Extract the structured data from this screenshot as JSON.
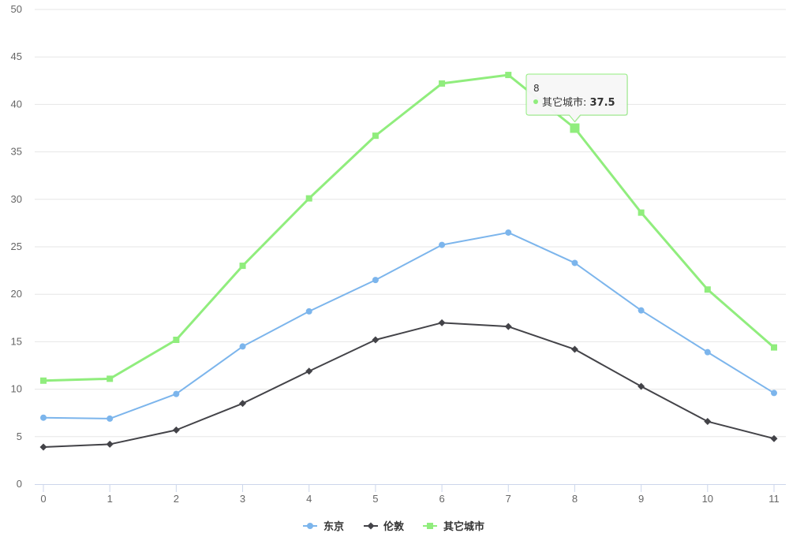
{
  "chart_data": {
    "type": "line",
    "x": [
      0,
      1,
      2,
      3,
      4,
      5,
      6,
      7,
      8,
      9,
      10,
      11
    ],
    "xlim": [
      0,
      11
    ],
    "ylim": [
      0,
      50
    ],
    "yticks": [
      0,
      5,
      10,
      15,
      20,
      25,
      30,
      35,
      40,
      45,
      50
    ],
    "grid": true,
    "legend_position": "bottom-center",
    "series": [
      {
        "name": "东京",
        "color": "#7cb5ec",
        "marker": "circle",
        "values": [
          7.0,
          6.9,
          9.5,
          14.5,
          18.2,
          21.5,
          25.2,
          26.5,
          23.3,
          18.3,
          13.9,
          9.6
        ]
      },
      {
        "name": "伦敦",
        "color": "#434348",
        "marker": "diamond",
        "values": [
          3.9,
          4.2,
          5.7,
          8.5,
          11.9,
          15.2,
          17.0,
          16.6,
          14.2,
          10.3,
          6.6,
          4.8
        ]
      },
      {
        "name": "其它城市",
        "color": "#90ed7d",
        "marker": "square",
        "values": [
          10.9,
          11.1,
          15.2,
          23.0,
          30.1,
          36.7,
          42.2,
          43.1,
          37.5,
          28.6,
          20.5,
          14.4
        ]
      }
    ],
    "tooltip": {
      "header": "8",
      "series_label": "其它城市: ",
      "value": "37.5"
    }
  }
}
